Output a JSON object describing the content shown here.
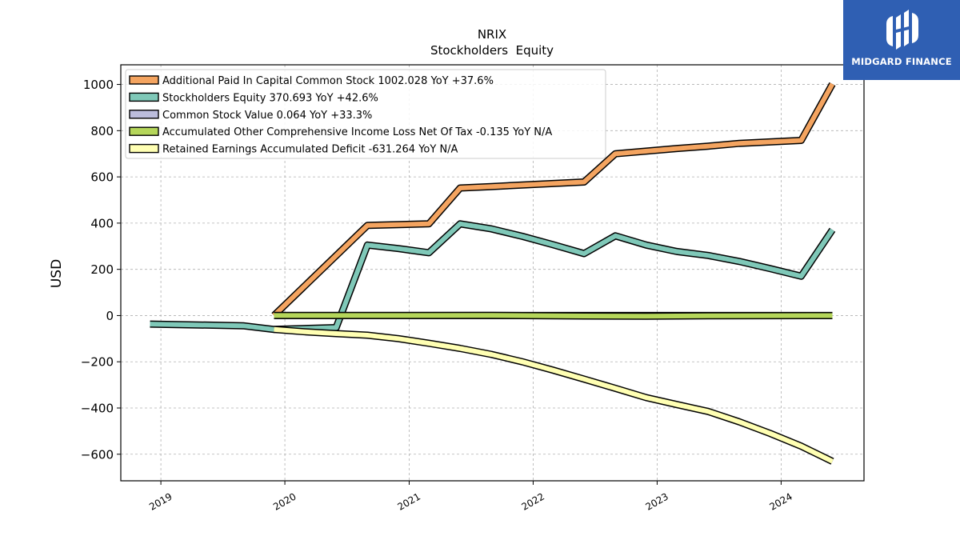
{
  "chart_data": {
    "type": "line",
    "title": "NRIX",
    "subtitle": "Stockholders  Equity",
    "ylabel": "USD",
    "xlabel": "",
    "xlim": [
      "2018-09-05",
      "2024-09-01"
    ],
    "ylim": [
      -715,
      1085
    ],
    "x_ticks": [
      "2019",
      "2020",
      "2021",
      "2022",
      "2023",
      "2024"
    ],
    "y_ticks": [
      1000,
      800,
      600,
      400,
      200,
      0,
      -200,
      -400,
      -600
    ],
    "y_tick_labels": [
      "1000",
      "800",
      "600",
      "400",
      "200",
      "0",
      "−200",
      "−400",
      "−600"
    ],
    "grid": true,
    "legend_position": "top-left",
    "series": [
      {
        "name": "Additional Paid In Capital Common Stock",
        "legend": "Additional Paid In Capital Common Stock  1002.028 YoY +37.6%",
        "color": "#f4a460",
        "points": [
          [
            "2019-11-30",
            0
          ],
          [
            "2020-08-31",
            390
          ],
          [
            "2021-02-28",
            397
          ],
          [
            "2021-05-31",
            552
          ],
          [
            "2021-08-31",
            558
          ],
          [
            "2022-05-31",
            578
          ],
          [
            "2022-08-31",
            700
          ],
          [
            "2023-02-28",
            723
          ],
          [
            "2023-05-31",
            733
          ],
          [
            "2023-08-31",
            745
          ],
          [
            "2024-02-29",
            758
          ],
          [
            "2024-05-31",
            1002
          ]
        ]
      },
      {
        "name": "Stockholders Equity",
        "legend": "Stockholders Equity  370.693 YoY +42.6%",
        "color": "#7fc8b8",
        "points": [
          [
            "2018-11-30",
            -37
          ],
          [
            "2019-08-31",
            -44
          ],
          [
            "2019-11-30",
            -60
          ],
          [
            "2020-05-31",
            -52
          ],
          [
            "2020-08-31",
            305
          ],
          [
            "2020-11-30",
            290
          ],
          [
            "2021-02-28",
            272
          ],
          [
            "2021-05-31",
            397
          ],
          [
            "2021-08-31",
            375
          ],
          [
            "2021-11-30",
            343
          ],
          [
            "2022-02-28",
            307
          ],
          [
            "2022-05-31",
            268
          ],
          [
            "2022-08-31",
            345
          ],
          [
            "2022-11-30",
            305
          ],
          [
            "2023-02-28",
            277
          ],
          [
            "2023-05-31",
            260
          ],
          [
            "2023-08-31",
            234
          ],
          [
            "2023-11-30",
            203
          ],
          [
            "2024-02-29",
            170
          ],
          [
            "2024-05-31",
            371
          ]
        ]
      },
      {
        "name": "Common Stock Value",
        "legend": "Common Stock Value  0.064 YoY +33.3%",
        "color": "#bcbddc",
        "points": [
          [
            "2019-11-30",
            0.05
          ],
          [
            "2024-05-31",
            0.064
          ]
        ]
      },
      {
        "name": "Accumulated Other Comprehensive Income Loss Net Of Tax",
        "legend": "Accumulated Other Comprehensive Income Loss Net Of Tax  -0.135 YoY N/A",
        "color": "#b5d65a",
        "points": [
          [
            "2019-11-30",
            0
          ],
          [
            "2021-08-31",
            0.5
          ],
          [
            "2022-05-31",
            -2
          ],
          [
            "2022-11-30",
            -3
          ],
          [
            "2023-05-31",
            -1
          ],
          [
            "2024-05-31",
            -0.135
          ]
        ]
      },
      {
        "name": "Retained Earnings Accumulated Deficit",
        "legend": "Retained Earnings Accumulated Deficit  -631.264 YoY N/A",
        "color": "#ffffb3",
        "points": [
          [
            "2019-11-30",
            -60
          ],
          [
            "2020-02-28",
            -70
          ],
          [
            "2020-05-31",
            -78
          ],
          [
            "2020-08-31",
            -85
          ],
          [
            "2020-11-30",
            -100
          ],
          [
            "2021-02-28",
            -120
          ],
          [
            "2021-05-31",
            -142
          ],
          [
            "2021-08-31",
            -168
          ],
          [
            "2021-11-30",
            -200
          ],
          [
            "2022-02-28",
            -236
          ],
          [
            "2022-05-31",
            -275
          ],
          [
            "2022-08-31",
            -315
          ],
          [
            "2022-11-30",
            -355
          ],
          [
            "2023-02-28",
            -385
          ],
          [
            "2023-05-31",
            -415
          ],
          [
            "2023-08-31",
            -460
          ],
          [
            "2023-11-30",
            -510
          ],
          [
            "2024-02-29",
            -565
          ],
          [
            "2024-05-31",
            -631
          ]
        ]
      }
    ]
  },
  "logo": {
    "text": "MIDGARD FINANCE",
    "background": "#2f5fb3"
  }
}
